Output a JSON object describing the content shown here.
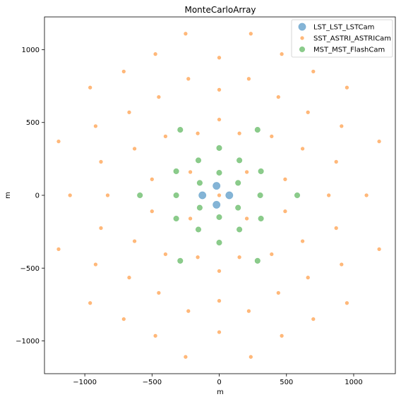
{
  "chart_data": {
    "type": "scatter",
    "title": "MonteCarloArray",
    "xlabel": "m",
    "ylabel": "m",
    "xlim": [
      -1300,
      1310
    ],
    "ylim": [
      -1225,
      1225
    ],
    "x_ticks": [
      -1000,
      -500,
      0,
      500,
      1000
    ],
    "y_ticks": [
      -1000,
      -500,
      0,
      500,
      1000
    ],
    "x_tick_labels": [
      "−1000",
      "−500",
      "0",
      "500",
      "1000"
    ],
    "y_tick_labels": [
      "−1000",
      "−500",
      "0",
      "500",
      "1000"
    ],
    "grid": false,
    "legend_position": "top-right",
    "series": [
      {
        "name": "LST_LST_LSTCam",
        "color": "#1f77b4",
        "marker": "large-circle",
        "points": [
          [
            -20,
            65
          ],
          [
            75,
            0
          ],
          [
            -20,
            -65
          ],
          [
            -125,
            0
          ]
        ]
      },
      {
        "name": "SST_ASTRI_ASTRICam",
        "color": "#ff7f0e",
        "marker": "small-circle",
        "points": [
          [
            -250,
            1110
          ],
          [
            235,
            1110
          ],
          [
            -475,
            970
          ],
          [
            465,
            970
          ],
          [
            -710,
            850
          ],
          [
            700,
            850
          ],
          [
            -960,
            740
          ],
          [
            950,
            740
          ],
          [
            -230,
            800
          ],
          [
            220,
            800
          ],
          [
            0,
            945
          ],
          [
            -450,
            675
          ],
          [
            440,
            675
          ],
          [
            0,
            725
          ],
          [
            -670,
            570
          ],
          [
            660,
            570
          ],
          [
            -920,
            475
          ],
          [
            910,
            475
          ],
          [
            -1195,
            370
          ],
          [
            1190,
            370
          ],
          [
            0,
            520
          ],
          [
            -400,
            405
          ],
          [
            390,
            405
          ],
          [
            -160,
            425
          ],
          [
            150,
            425
          ],
          [
            -630,
            320
          ],
          [
            620,
            320
          ],
          [
            -880,
            230
          ],
          [
            870,
            230
          ],
          [
            -500,
            110
          ],
          [
            490,
            110
          ],
          [
            -215,
            160
          ],
          [
            205,
            160
          ],
          [
            -1110,
            0
          ],
          [
            1095,
            0
          ],
          [
            -830,
            0
          ],
          [
            815,
            0
          ],
          [
            -500,
            -110
          ],
          [
            490,
            -110
          ],
          [
            -215,
            -160
          ],
          [
            205,
            -160
          ],
          [
            -880,
            -225
          ],
          [
            870,
            -225
          ],
          [
            -630,
            -315
          ],
          [
            620,
            -315
          ],
          [
            -1195,
            -370
          ],
          [
            1190,
            -370
          ],
          [
            -160,
            -425
          ],
          [
            150,
            -425
          ],
          [
            -400,
            -405
          ],
          [
            390,
            -405
          ],
          [
            0,
            -520
          ],
          [
            -920,
            -475
          ],
          [
            910,
            -475
          ],
          [
            -670,
            -565
          ],
          [
            660,
            -565
          ],
          [
            -450,
            -670
          ],
          [
            440,
            -670
          ],
          [
            0,
            -725
          ],
          [
            -230,
            -795
          ],
          [
            220,
            -795
          ],
          [
            -960,
            -740
          ],
          [
            950,
            -740
          ],
          [
            0,
            -940
          ],
          [
            -710,
            -850
          ],
          [
            700,
            -850
          ],
          [
            -475,
            -965
          ],
          [
            465,
            -965
          ],
          [
            -250,
            -1110
          ],
          [
            235,
            -1110
          ],
          [
            0,
            0
          ]
        ]
      },
      {
        "name": "MST_MST_FlashCam",
        "color": "#2ca02c",
        "marker": "medium-circle",
        "points": [
          [
            -290,
            450
          ],
          [
            285,
            450
          ],
          [
            0,
            325
          ],
          [
            -155,
            240
          ],
          [
            150,
            240
          ],
          [
            -320,
            165
          ],
          [
            310,
            165
          ],
          [
            0,
            155
          ],
          [
            -145,
            85
          ],
          [
            140,
            85
          ],
          [
            -590,
            0
          ],
          [
            -320,
            0
          ],
          [
            305,
            0
          ],
          [
            580,
            0
          ],
          [
            -145,
            -85
          ],
          [
            140,
            -85
          ],
          [
            0,
            -150
          ],
          [
            -320,
            -160
          ],
          [
            310,
            -160
          ],
          [
            -155,
            -235
          ],
          [
            150,
            -235
          ],
          [
            0,
            -325
          ],
          [
            -290,
            -450
          ],
          [
            285,
            -450
          ]
        ]
      }
    ]
  }
}
